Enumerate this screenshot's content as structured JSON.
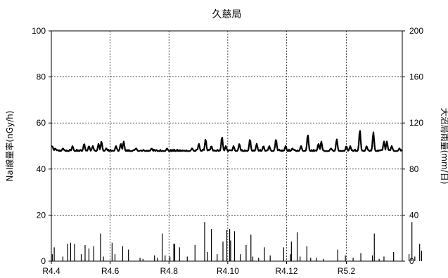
{
  "chart_data": {
    "type": "line",
    "title": "久慈局",
    "ylabel": "NaI線量率(nGy/h)",
    "y2label": "大沼局雨量(mm/日)",
    "xlabel": "",
    "ylim": [
      0,
      100
    ],
    "y2lim": [
      0,
      200
    ],
    "yticks": [
      "0",
      "20",
      "40",
      "60",
      "80",
      "100"
    ],
    "y2ticks": [
      "0",
      "40",
      "80",
      "120",
      "160",
      "200"
    ],
    "xlim": [
      "2022-04-01",
      "2023-03-31"
    ],
    "xticks": [
      {
        "date": "2022-04-01",
        "label": "R4.4"
      },
      {
        "date": "2022-06-01",
        "label": "R4.6"
      },
      {
        "date": "2022-08-01",
        "label": "R4.8"
      },
      {
        "date": "2022-10-01",
        "label": "R4.10"
      },
      {
        "date": "2022-12-01",
        "label": "R4.12"
      },
      {
        "date": "2023-02-01",
        "label": "R5.2"
      }
    ],
    "grid": true,
    "dose_rate": {
      "axis": "left",
      "baseline": 47.8,
      "peaks": [
        [
          "2022-04-02",
          50
        ],
        [
          "2022-04-05",
          49
        ],
        [
          "2022-04-13",
          49
        ],
        [
          "2022-04-23",
          50
        ],
        [
          "2022-05-05",
          51
        ],
        [
          "2022-05-10",
          50
        ],
        [
          "2022-05-14",
          50
        ],
        [
          "2022-05-20",
          51
        ],
        [
          "2022-05-23",
          52
        ],
        [
          "2022-05-28",
          49
        ],
        [
          "2022-06-07",
          50
        ],
        [
          "2022-06-12",
          51
        ],
        [
          "2022-06-15",
          52
        ],
        [
          "2022-06-28",
          49
        ],
        [
          "2022-07-14",
          49
        ],
        [
          "2022-07-30",
          49
        ],
        [
          "2022-08-25",
          49
        ],
        [
          "2022-09-01",
          51
        ],
        [
          "2022-09-08",
          53
        ],
        [
          "2022-09-14",
          50
        ],
        [
          "2022-09-25",
          54
        ],
        [
          "2022-09-29",
          50
        ],
        [
          "2022-10-07",
          50
        ],
        [
          "2022-10-13",
          51
        ],
        [
          "2022-10-24",
          53
        ],
        [
          "2022-10-31",
          51
        ],
        [
          "2022-11-07",
          50
        ],
        [
          "2022-11-13",
          50
        ],
        [
          "2022-11-20",
          53
        ],
        [
          "2022-11-30",
          50
        ],
        [
          "2022-12-07",
          49
        ],
        [
          "2022-12-16",
          50
        ],
        [
          "2022-12-23",
          55
        ],
        [
          "2023-01-03",
          51
        ],
        [
          "2023-01-06",
          52
        ],
        [
          "2023-01-16",
          49
        ],
        [
          "2023-01-22",
          53
        ],
        [
          "2023-02-01",
          50
        ],
        [
          "2023-02-05",
          50
        ],
        [
          "2023-02-15",
          57
        ],
        [
          "2023-02-22",
          50
        ],
        [
          "2023-03-01",
          56
        ],
        [
          "2023-03-12",
          52
        ],
        [
          "2023-03-15",
          52
        ],
        [
          "2023-03-20",
          50
        ],
        [
          "2023-03-28",
          49
        ],
        [
          "2023-04-07",
          49
        ],
        [
          "2023-04-15",
          54
        ],
        [
          "2023-04-23",
          52
        ]
      ]
    },
    "rainfall": {
      "axis": "right",
      "values": [
        [
          "2022-04-02",
          6
        ],
        [
          "2022-04-04",
          12
        ],
        [
          "2022-04-13",
          4
        ],
        [
          "2022-04-18",
          15
        ],
        [
          "2022-04-21",
          16
        ],
        [
          "2022-04-25",
          15
        ],
        [
          "2022-05-02",
          6
        ],
        [
          "2022-05-06",
          14
        ],
        [
          "2022-05-10",
          11
        ],
        [
          "2022-05-15",
          13
        ],
        [
          "2022-05-22",
          24
        ],
        [
          "2022-05-25",
          4
        ],
        [
          "2022-06-03",
          16
        ],
        [
          "2022-06-06",
          6
        ],
        [
          "2022-06-14",
          13
        ],
        [
          "2022-06-20",
          10
        ],
        [
          "2022-07-02",
          3
        ],
        [
          "2022-07-05",
          2
        ],
        [
          "2022-07-17",
          5
        ],
        [
          "2022-07-20",
          3
        ],
        [
          "2022-07-25",
          24
        ],
        [
          "2022-07-28",
          5
        ],
        [
          "2022-08-02",
          4
        ],
        [
          "2022-08-06",
          15
        ],
        [
          "2022-08-07",
          15
        ],
        [
          "2022-08-12",
          12
        ],
        [
          "2022-08-20",
          4
        ],
        [
          "2022-08-28",
          14
        ],
        [
          "2022-09-07",
          34
        ],
        [
          "2022-09-10",
          8
        ],
        [
          "2022-09-14",
          28
        ],
        [
          "2022-09-20",
          6
        ],
        [
          "2022-09-26",
          17
        ],
        [
          "2022-09-30",
          27
        ],
        [
          "2022-10-03",
          28
        ],
        [
          "2022-10-04",
          18
        ],
        [
          "2022-10-08",
          26
        ],
        [
          "2022-10-14",
          6
        ],
        [
          "2022-10-20",
          14
        ],
        [
          "2022-10-25",
          23
        ],
        [
          "2022-10-27",
          4
        ],
        [
          "2022-11-02",
          3
        ],
        [
          "2022-11-08",
          12
        ],
        [
          "2022-11-14",
          5
        ],
        [
          "2022-11-28",
          12
        ],
        [
          "2022-12-05",
          6
        ],
        [
          "2022-12-06",
          17
        ],
        [
          "2022-12-12",
          25
        ],
        [
          "2022-12-15",
          4
        ],
        [
          "2022-12-22",
          13
        ],
        [
          "2022-12-26",
          3
        ],
        [
          "2023-01-01",
          3
        ],
        [
          "2023-01-08",
          2
        ],
        [
          "2023-01-23",
          10
        ],
        [
          "2023-01-31",
          5
        ],
        [
          "2023-02-08",
          3
        ],
        [
          "2023-02-16",
          7
        ],
        [
          "2023-02-28",
          5
        ],
        [
          "2023-03-02",
          24
        ],
        [
          "2023-03-07",
          2
        ],
        [
          "2023-03-12",
          4
        ],
        [
          "2023-03-22",
          8
        ],
        [
          "2023-04-07",
          6
        ],
        [
          "2023-04-10",
          34
        ],
        [
          "2023-04-13",
          4
        ],
        [
          "2023-04-18",
          15
        ],
        [
          "2023-04-20",
          9
        ]
      ]
    }
  }
}
